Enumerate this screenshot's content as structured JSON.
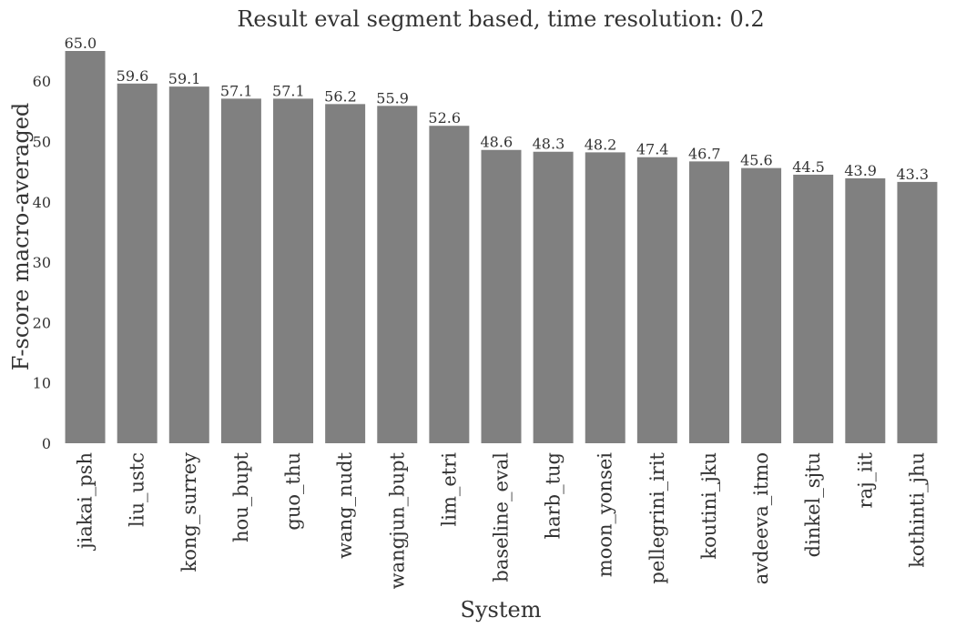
{
  "chart_data": {
    "type": "bar",
    "title": "Result eval segment based, time resolution: 0.2",
    "xlabel": "System",
    "ylabel": "F-score macro-averaged",
    "categories": [
      "jiakai_psh",
      "liu_ustc",
      "kong_surrey",
      "hou_bupt",
      "guo_thu",
      "wang_nudt",
      "wangjun_bupt",
      "lim_etri",
      "baseline_eval",
      "harb_tug",
      "moon_yonsei",
      "pellegrini_irit",
      "koutini_jku",
      "avdeeva_itmo",
      "dinkel_sjtu",
      "raj_iit",
      "kothinti_jhu"
    ],
    "values": [
      65.0,
      59.6,
      59.1,
      57.1,
      57.1,
      56.2,
      55.9,
      52.6,
      48.6,
      48.3,
      48.2,
      47.4,
      46.7,
      45.6,
      44.5,
      43.9,
      43.3
    ],
    "data_labels": [
      "65.0",
      "59.6",
      "59.1",
      "57.1",
      "57.1",
      "56.2",
      "55.9",
      "52.6",
      "48.6",
      "48.3",
      "48.2",
      "47.4",
      "46.7",
      "45.6",
      "44.5",
      "43.9",
      "43.3"
    ],
    "yticks": [
      "0",
      "10",
      "20",
      "30",
      "40",
      "50",
      "60"
    ],
    "ylim": [
      0,
      65
    ],
    "grid": false,
    "bar_color": "#808080"
  }
}
